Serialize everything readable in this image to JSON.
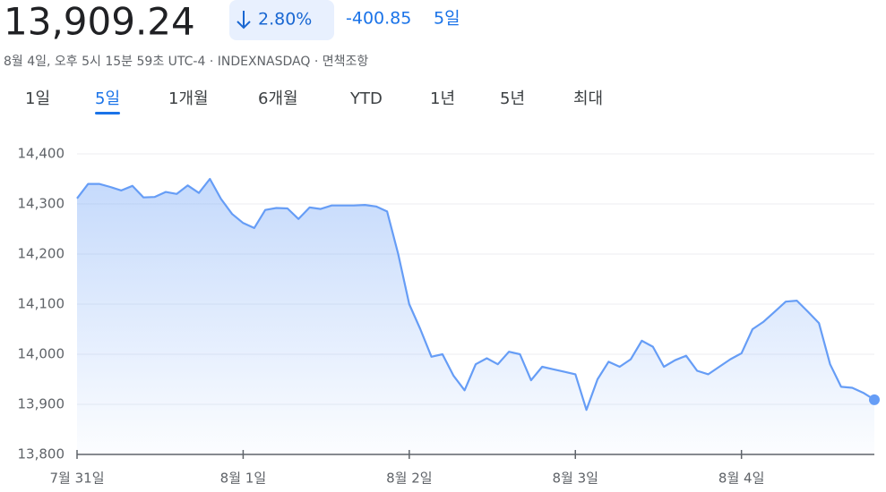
{
  "header": {
    "price": "13,909.24",
    "change_percent": "2.80%",
    "change_abs": "-400.85",
    "period": "5일",
    "subtitle": "8월 4일, 오후 5시 15분 59초 UTC-4 · INDEXNASDAQ · 면책조항"
  },
  "tabs": [
    "1일",
    "5일",
    "1개월",
    "6개월",
    "YTD",
    "1년",
    "5년",
    "최대"
  ],
  "active_tab": 1,
  "chart_data": {
    "type": "area",
    "categories": [
      "7월 31일",
      null,
      null,
      null,
      null,
      null,
      null,
      null,
      null,
      null,
      null,
      null,
      null,
      null,
      null,
      "8월 1일",
      null,
      null,
      null,
      null,
      null,
      null,
      null,
      null,
      null,
      null,
      null,
      null,
      null,
      null,
      "8월 2일",
      null,
      null,
      null,
      null,
      null,
      null,
      null,
      null,
      null,
      null,
      null,
      null,
      null,
      null,
      "8월 3일",
      null,
      null,
      null,
      null,
      null,
      null,
      null,
      null,
      null,
      null,
      null,
      null,
      null,
      null,
      "8월 4일",
      null,
      null,
      null,
      null,
      null,
      null,
      null,
      null,
      null,
      null,
      null,
      null
    ],
    "series": [
      {
        "color": "#669df6",
        "values": [
          14311,
          14340,
          14340,
          14334,
          14327,
          14336,
          14313,
          14314,
          14324,
          14320,
          14337,
          14322,
          14350,
          14310,
          14280,
          14262,
          14252,
          14288,
          14292,
          14291,
          14270,
          14293,
          14290,
          14297,
          14297,
          14297,
          14298,
          14295,
          14285,
          14200,
          14100,
          14050,
          13995,
          14000,
          13957,
          13928,
          13980,
          13992,
          13980,
          14005,
          14000,
          13948,
          13975,
          13970,
          13965,
          13960,
          13889,
          13950,
          13985,
          13975,
          13990,
          14027,
          14015,
          13975,
          13988,
          13997,
          13967,
          13960,
          13975,
          13990,
          14002,
          14050,
          14065,
          14085,
          14105,
          14107,
          14085,
          14062,
          13980,
          13935,
          13933,
          13923,
          13909.24
        ]
      }
    ],
    "ylim": [
      13800,
      14400
    ],
    "yticks": [
      {
        "value": 13800,
        "label": "13,800"
      },
      {
        "value": 13900,
        "label": "13,900"
      },
      {
        "value": 14000,
        "label": "14,000"
      },
      {
        "value": 14100,
        "label": "14,100"
      },
      {
        "value": 14200,
        "label": "14,200"
      },
      {
        "value": 14300,
        "label": "14,300"
      },
      {
        "value": 14400,
        "label": "14,400"
      }
    ],
    "grid": true
  }
}
